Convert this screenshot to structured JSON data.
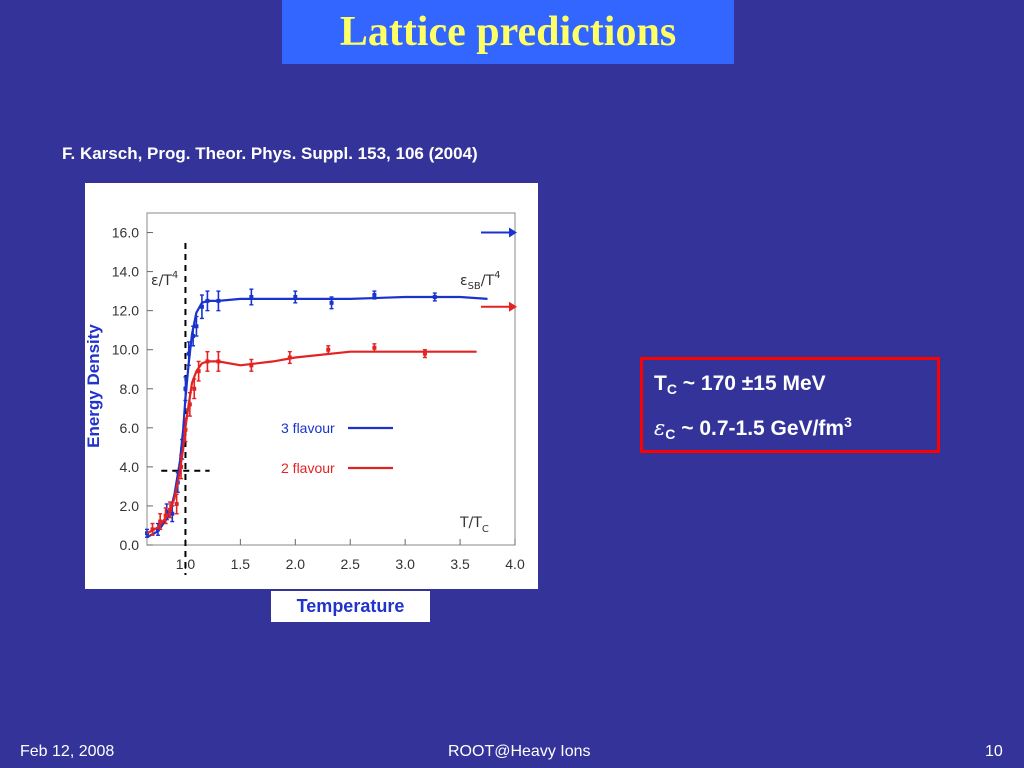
{
  "slide": {
    "title": "Lattice predictions",
    "citation": "F. Karsch, Prog. Theor. Phys. Suppl. 153, 106 (2004)",
    "y_overlay_label": "Energy Density",
    "x_overlay_label": "Temperature",
    "colors": {
      "background": "#333399",
      "title_box": "#3366ff",
      "title_text": "#ffff66",
      "box_border": "#ff0000"
    }
  },
  "results": {
    "line1": {
      "sym": "T",
      "sub": "C",
      "rest": " ~ 170 ±15 MeV"
    },
    "line2": {
      "sym": "ε",
      "sub": "C",
      "rest": " ~ 0.7-1.5 GeV/fm",
      "sup": "3"
    }
  },
  "footer": {
    "date": "Feb 12, 2008",
    "center": "ROOT@Heavy Ions",
    "page": "10"
  },
  "chart_data": {
    "type": "line",
    "xlabel": "T/T",
    "xlabel_sub": "C",
    "ylabel": "ε/T",
    "ylabel_sup": "4",
    "sb_label": "ε",
    "sb_label_sub": "SB",
    "sb_label_rest": "/T",
    "sb_label_sup": "4",
    "xlim": [
      0.65,
      4.0
    ],
    "ylim": [
      0,
      17.0
    ],
    "x_ticks": [
      "1.0",
      "1.5",
      "2.0",
      "2.5",
      "3.0",
      "3.5",
      "4.0"
    ],
    "y_ticks": [
      "0.0",
      "2.0",
      "4.0",
      "6.0",
      "8.0",
      "10.0",
      "12.0",
      "14.0",
      "16.0"
    ],
    "series": [
      {
        "name": "3 flavour",
        "color": "#1a33cc",
        "curve_x": [
          0.65,
          0.75,
          0.85,
          0.9,
          0.95,
          0.98,
          1.0,
          1.03,
          1.06,
          1.1,
          1.15,
          1.2,
          1.3,
          1.5,
          1.8,
          2.0,
          2.5,
          3.0,
          3.5,
          3.75
        ],
        "curve_y": [
          0.4,
          0.7,
          1.5,
          2.6,
          4.3,
          6.0,
          7.5,
          9.3,
          10.8,
          11.9,
          12.4,
          12.5,
          12.5,
          12.6,
          12.6,
          12.6,
          12.6,
          12.7,
          12.7,
          12.6
        ],
        "points_x": [
          0.65,
          0.75,
          0.83,
          0.88,
          0.93,
          0.97,
          1.0,
          1.03,
          1.07,
          1.1,
          1.15,
          1.2,
          1.3,
          1.6,
          2.0,
          2.33,
          2.72,
          3.27
        ],
        "points_y": [
          0.6,
          0.8,
          1.7,
          1.6,
          3.2,
          4.9,
          8.0,
          9.8,
          10.7,
          11.2,
          12.2,
          12.5,
          12.5,
          12.7,
          12.7,
          12.4,
          12.8,
          12.7
        ],
        "points_err": [
          0.2,
          0.3,
          0.4,
          0.4,
          0.5,
          0.5,
          0.6,
          0.6,
          0.5,
          0.5,
          0.6,
          0.5,
          0.5,
          0.4,
          0.3,
          0.3,
          0.2,
          0.2
        ]
      },
      {
        "name": "2 flavour",
        "color": "#e32222",
        "curve_x": [
          0.65,
          0.75,
          0.85,
          0.9,
          0.95,
          0.98,
          1.0,
          1.03,
          1.06,
          1.1,
          1.15,
          1.2,
          1.3,
          1.5,
          1.8,
          2.0,
          2.5,
          3.0,
          3.5,
          3.65
        ],
        "curve_y": [
          0.6,
          0.9,
          1.6,
          2.4,
          3.8,
          5.0,
          6.0,
          7.2,
          8.3,
          8.9,
          9.3,
          9.4,
          9.4,
          9.2,
          9.4,
          9.6,
          9.9,
          9.9,
          9.9,
          9.9
        ],
        "points_x": [
          0.7,
          0.77,
          0.82,
          0.86,
          0.92,
          0.96,
          1.0,
          1.04,
          1.08,
          1.12,
          1.2,
          1.3,
          1.6,
          1.95,
          2.3,
          2.72,
          3.18
        ],
        "points_y": [
          0.8,
          1.2,
          1.5,
          1.8,
          2.1,
          4.0,
          5.9,
          7.2,
          8.0,
          8.9,
          9.4,
          9.4,
          9.2,
          9.6,
          10.0,
          10.1,
          9.8
        ],
        "points_err": [
          0.3,
          0.4,
          0.4,
          0.4,
          0.5,
          0.6,
          0.6,
          0.6,
          0.5,
          0.5,
          0.5,
          0.5,
          0.3,
          0.3,
          0.2,
          0.2,
          0.2
        ]
      }
    ],
    "guide_lines": {
      "vertical_x": 1.0,
      "horizontal_y": 3.8,
      "horizontal_x": [
        0.78,
        1.22
      ]
    },
    "sb_limits": [
      {
        "color": "#1a33cc",
        "y": 16.0
      },
      {
        "color": "#e32222",
        "y": 12.2
      }
    ],
    "legend_placement": "center"
  }
}
